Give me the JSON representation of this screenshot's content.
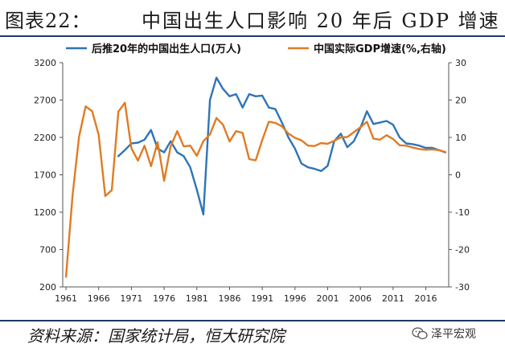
{
  "header": {
    "figure_label": "图表22：",
    "title": "中国出生人口影响 20 年后 GDP 增速"
  },
  "footer": {
    "source": "资料来源：国家统计局，恒大研究院",
    "watermark": "泽平宏观",
    "watermark_icon": "wechat-icon"
  },
  "chart_data": {
    "type": "line",
    "legend_position": "top",
    "grid": false,
    "x_ticks": [
      1961,
      1966,
      1971,
      1976,
      1981,
      1986,
      1991,
      1996,
      2001,
      2006,
      2011,
      2016
    ],
    "left_axis": {
      "ticks": [
        200,
        700,
        1200,
        1700,
        2200,
        2700,
        3200
      ],
      "ylim": [
        200,
        3200
      ]
    },
    "right_axis": {
      "ticks": [
        -30,
        -20,
        -10,
        0,
        10,
        20,
        30
      ],
      "ylim": [
        -30,
        30
      ]
    },
    "xlim": [
      1960.5,
      2019.5
    ],
    "series": [
      {
        "name": "后推20年的中国出生人口(万人)",
        "axis": "left",
        "color": "#2e75b6",
        "points": [
          [
            1969,
            1950
          ],
          [
            1970,
            2030
          ],
          [
            1971,
            2120
          ],
          [
            1972,
            2130
          ],
          [
            1973,
            2170
          ],
          [
            1974,
            2300
          ],
          [
            1975,
            2050
          ],
          [
            1976,
            2000
          ],
          [
            1977,
            2150
          ],
          [
            1978,
            2000
          ],
          [
            1979,
            1950
          ],
          [
            1980,
            1800
          ],
          [
            1981,
            1500
          ],
          [
            1982,
            1170
          ],
          [
            1983,
            2700
          ],
          [
            1984,
            3000
          ],
          [
            1985,
            2850
          ],
          [
            1986,
            2750
          ],
          [
            1987,
            2780
          ],
          [
            1988,
            2600
          ],
          [
            1989,
            2780
          ],
          [
            1990,
            2750
          ],
          [
            1991,
            2760
          ],
          [
            1992,
            2600
          ],
          [
            1993,
            2580
          ],
          [
            1994,
            2400
          ],
          [
            1995,
            2200
          ],
          [
            1996,
            2050
          ],
          [
            1997,
            1850
          ],
          [
            1998,
            1800
          ],
          [
            1999,
            1780
          ],
          [
            2000,
            1750
          ],
          [
            2001,
            1820
          ],
          [
            2002,
            2150
          ],
          [
            2003,
            2250
          ],
          [
            2004,
            2070
          ],
          [
            2005,
            2150
          ],
          [
            2006,
            2330
          ],
          [
            2007,
            2550
          ],
          [
            2008,
            2380
          ],
          [
            2009,
            2400
          ],
          [
            2010,
            2420
          ],
          [
            2011,
            2370
          ],
          [
            2012,
            2200
          ],
          [
            2013,
            2120
          ],
          [
            2014,
            2110
          ],
          [
            2015,
            2090
          ],
          [
            2016,
            2060
          ],
          [
            2017,
            2060
          ],
          [
            2018,
            2030
          ],
          [
            2019,
            2000
          ]
        ]
      },
      {
        "name": "中国实际GDP增速(%,右轴)",
        "axis": "right",
        "color": "#e07b24",
        "points": [
          [
            1961,
            -27.3
          ],
          [
            1962,
            -5.6
          ],
          [
            1963,
            10.2
          ],
          [
            1964,
            18.3
          ],
          [
            1965,
            17.0
          ],
          [
            1966,
            10.7
          ],
          [
            1967,
            -5.7
          ],
          [
            1968,
            -4.1
          ],
          [
            1969,
            16.9
          ],
          [
            1970,
            19.3
          ],
          [
            1971,
            7.1
          ],
          [
            1972,
            3.8
          ],
          [
            1973,
            7.8
          ],
          [
            1974,
            2.3
          ],
          [
            1975,
            8.7
          ],
          [
            1976,
            -1.6
          ],
          [
            1977,
            7.6
          ],
          [
            1978,
            11.7
          ],
          [
            1979,
            7.6
          ],
          [
            1980,
            7.8
          ],
          [
            1981,
            5.1
          ],
          [
            1982,
            9.0
          ],
          [
            1983,
            10.8
          ],
          [
            1984,
            15.2
          ],
          [
            1985,
            13.4
          ],
          [
            1986,
            8.9
          ],
          [
            1987,
            11.7
          ],
          [
            1988,
            11.2
          ],
          [
            1989,
            4.2
          ],
          [
            1990,
            3.9
          ],
          [
            1991,
            9.3
          ],
          [
            1992,
            14.2
          ],
          [
            1993,
            13.9
          ],
          [
            1994,
            13.0
          ],
          [
            1995,
            11.0
          ],
          [
            1996,
            9.9
          ],
          [
            1997,
            9.2
          ],
          [
            1998,
            7.8
          ],
          [
            1999,
            7.7
          ],
          [
            2000,
            8.5
          ],
          [
            2001,
            8.3
          ],
          [
            2002,
            9.1
          ],
          [
            2003,
            10.0
          ],
          [
            2004,
            10.1
          ],
          [
            2005,
            11.4
          ],
          [
            2006,
            12.7
          ],
          [
            2007,
            14.2
          ],
          [
            2008,
            9.7
          ],
          [
            2009,
            9.4
          ],
          [
            2010,
            10.6
          ],
          [
            2011,
            9.6
          ],
          [
            2012,
            7.9
          ],
          [
            2013,
            7.8
          ],
          [
            2014,
            7.3
          ],
          [
            2015,
            6.9
          ],
          [
            2016,
            6.7
          ],
          [
            2017,
            6.8
          ],
          [
            2018,
            6.6
          ],
          [
            2019,
            6.1
          ]
        ]
      }
    ]
  }
}
